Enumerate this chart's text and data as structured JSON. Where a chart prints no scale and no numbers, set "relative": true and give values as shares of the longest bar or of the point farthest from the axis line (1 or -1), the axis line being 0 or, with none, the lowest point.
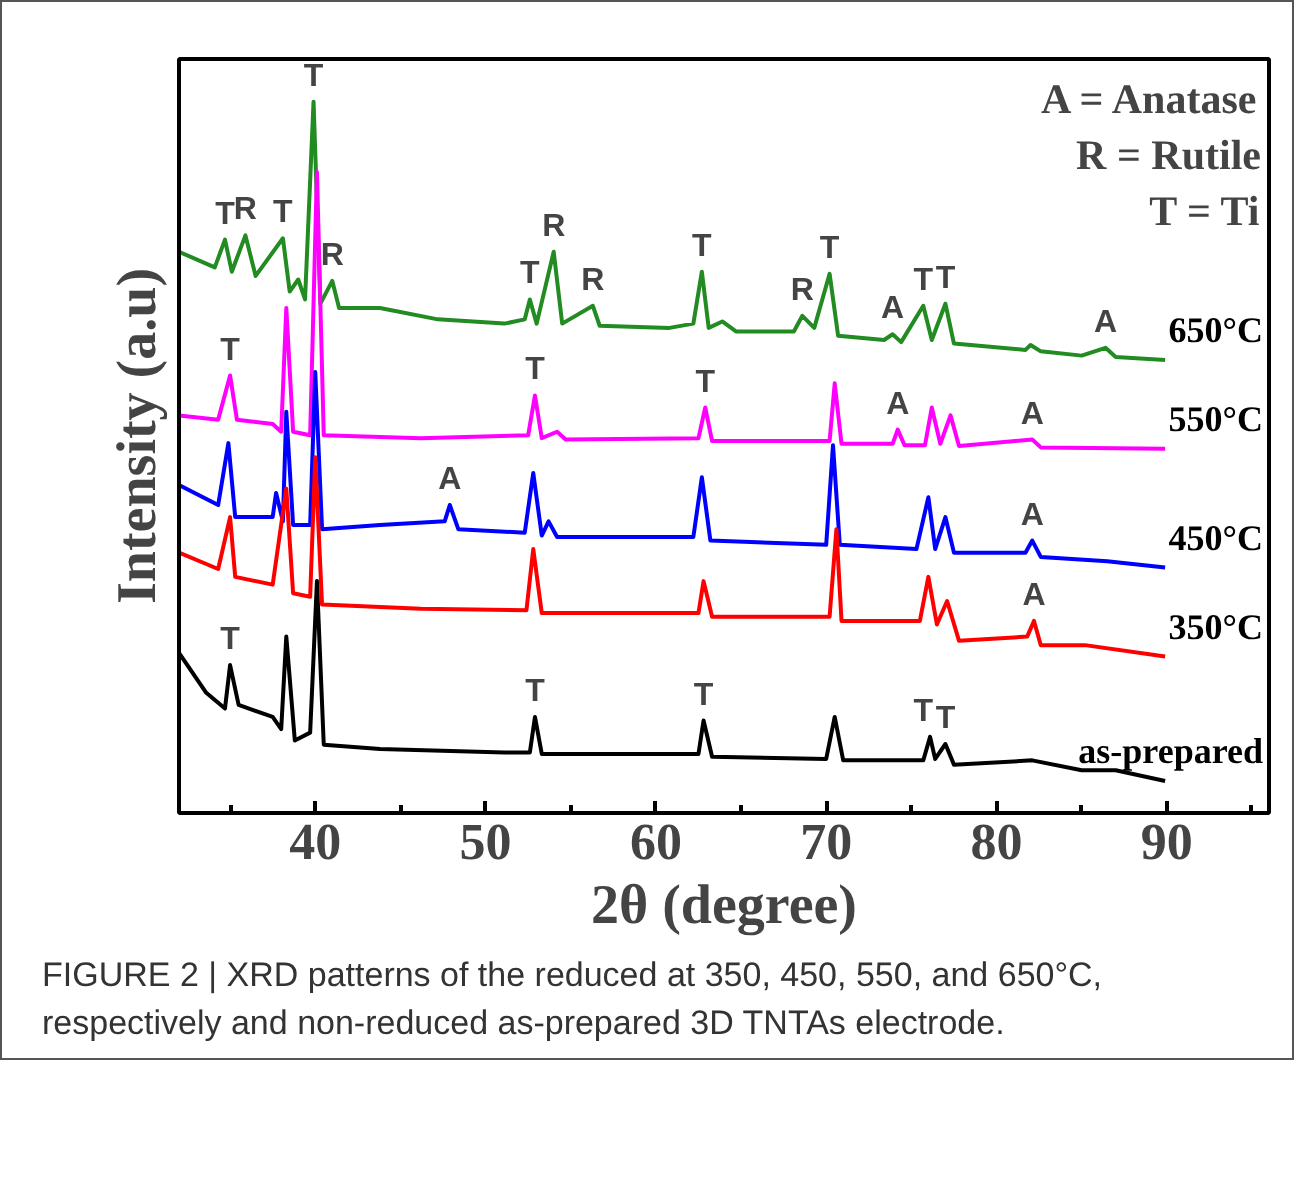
{
  "chart_data": {
    "type": "line",
    "relative": true,
    "xlabel": "2θ (degree)",
    "ylabel": "Intensity (a.u)",
    "xlim": [
      32,
      96
    ],
    "xticks": [
      {
        "value": 35,
        "label": null
      },
      40,
      {
        "value": 45,
        "label": null
      },
      50,
      {
        "value": 55,
        "label": null
      },
      60,
      {
        "value": 65,
        "label": null
      },
      70,
      {
        "value": 75,
        "label": null
      },
      80,
      {
        "value": 85,
        "label": null
      },
      90,
      {
        "value": 95,
        "label": null
      }
    ],
    "grid": false,
    "marker": "none",
    "line_style": "solid",
    "series": [
      {
        "name": "650°C",
        "color": "#228b22",
        "x": [
          32,
          34.1,
          34.7,
          35.1,
          35.9,
          36.5,
          38.1,
          38.5,
          39.0,
          39.4,
          39.9,
          40.3,
          41.0,
          41.4,
          43.8,
          47.2,
          51.1,
          52.3,
          52.6,
          53.0,
          54.0,
          54.5,
          56.3,
          56.7,
          60.8,
          62.2,
          62.7,
          63.1,
          63.9,
          64.7,
          68.1,
          68.6,
          69.3,
          70.2,
          70.7,
          73.4,
          73.9,
          74.4,
          75.7,
          76.2,
          77.0,
          77.5,
          81.7,
          82.0,
          82.6,
          85.0,
          86.4,
          87.0,
          89.9
        ],
        "values": [
          0.789,
          0.767,
          0.806,
          0.761,
          0.812,
          0.755,
          0.808,
          0.733,
          0.75,
          0.722,
          1.0,
          0.716,
          0.748,
          0.71,
          0.71,
          0.694,
          0.688,
          0.694,
          0.722,
          0.688,
          0.789,
          0.688,
          0.713,
          0.685,
          0.682,
          0.688,
          0.761,
          0.682,
          0.691,
          0.677,
          0.677,
          0.699,
          0.682,
          0.758,
          0.671,
          0.665,
          0.673,
          0.662,
          0.713,
          0.665,
          0.716,
          0.66,
          0.651,
          0.658,
          0.649,
          0.643,
          0.654,
          0.641,
          0.637
        ]
      },
      {
        "name": "550°C",
        "color": "#ff00ff",
        "x": [
          32,
          34.3,
          35.0,
          35.4,
          37.5,
          38.0,
          38.3,
          38.7,
          39.7,
          40.1,
          40.5,
          46.2,
          52.5,
          52.9,
          53.3,
          54.2,
          54.7,
          62.5,
          62.9,
          63.3,
          70.2,
          70.5,
          70.9,
          73.9,
          74.2,
          74.6,
          75.8,
          76.2,
          76.7,
          77.3,
          77.8,
          82.1,
          82.6,
          89.9
        ],
        "values": [
          0.559,
          0.553,
          0.615,
          0.553,
          0.547,
          0.536,
          0.71,
          0.536,
          0.531,
          0.901,
          0.531,
          0.527,
          0.531,
          0.587,
          0.527,
          0.536,
          0.525,
          0.527,
          0.57,
          0.523,
          0.523,
          0.604,
          0.519,
          0.519,
          0.539,
          0.517,
          0.517,
          0.57,
          0.519,
          0.559,
          0.516,
          0.525,
          0.514,
          0.512
        ]
      },
      {
        "name": "450°C",
        "color": "#0000ff",
        "x": [
          32,
          34.3,
          34.9,
          35.3,
          37.5,
          37.7,
          38.1,
          38.3,
          38.7,
          39.7,
          40.0,
          40.4,
          43.8,
          47.6,
          47.9,
          48.4,
          52.3,
          52.8,
          53.3,
          53.7,
          54.2,
          62.2,
          62.7,
          63.2,
          70.0,
          70.4,
          70.8,
          75.3,
          76.0,
          76.4,
          77.0,
          77.5,
          81.7,
          82.1,
          82.6,
          86.5,
          89.9
        ],
        "values": [
          0.461,
          0.433,
          0.52,
          0.416,
          0.416,
          0.45,
          0.41,
          0.564,
          0.405,
          0.405,
          0.62,
          0.399,
          0.405,
          0.41,
          0.433,
          0.399,
          0.394,
          0.478,
          0.39,
          0.41,
          0.388,
          0.388,
          0.472,
          0.383,
          0.377,
          0.517,
          0.377,
          0.371,
          0.444,
          0.371,
          0.416,
          0.366,
          0.366,
          0.383,
          0.36,
          0.354,
          0.345
        ]
      },
      {
        "name": "350°C",
        "color": "#ff0000",
        "x": [
          32,
          34.3,
          35.0,
          35.3,
          37.5,
          38.3,
          38.7,
          39.7,
          40.0,
          40.4,
          46.2,
          52.4,
          52.8,
          53.3,
          62.5,
          62.8,
          63.3,
          70.2,
          70.6,
          70.9,
          75.5,
          76.0,
          76.5,
          77.1,
          77.8,
          81.8,
          82.2,
          82.6,
          85.2,
          89.9
        ],
        "values": [
          0.366,
          0.343,
          0.416,
          0.332,
          0.321,
          0.456,
          0.309,
          0.304,
          0.5,
          0.293,
          0.287,
          0.285,
          0.371,
          0.281,
          0.281,
          0.326,
          0.276,
          0.276,
          0.399,
          0.27,
          0.27,
          0.332,
          0.265,
          0.298,
          0.242,
          0.248,
          0.27,
          0.236,
          0.236,
          0.22
        ]
      },
      {
        "name": "as-prepared",
        "color": "#000000",
        "x": [
          32,
          33.6,
          34.7,
          35.0,
          35.5,
          37.5,
          38.0,
          38.3,
          38.8,
          39.7,
          40.1,
          40.5,
          43.8,
          51.1,
          52.6,
          52.9,
          53.3,
          62.5,
          62.8,
          63.3,
          70.0,
          70.5,
          71.0,
          75.7,
          76.1,
          76.4,
          77.0,
          77.5,
          82.1,
          85.0,
          87.0,
          89.9
        ],
        "values": [
          0.225,
          0.169,
          0.147,
          0.208,
          0.152,
          0.135,
          0.118,
          0.248,
          0.102,
          0.113,
          0.326,
          0.096,
          0.09,
          0.085,
          0.085,
          0.135,
          0.083,
          0.083,
          0.13,
          0.079,
          0.076,
          0.135,
          0.074,
          0.074,
          0.107,
          0.076,
          0.097,
          0.068,
          0.074,
          0.06,
          0.06,
          0.045
        ]
      }
    ],
    "annotations": [
      {
        "text": "T",
        "x": 34.7,
        "y": 0.806
      },
      {
        "text": "R",
        "x": 35.9,
        "y": 0.812
      },
      {
        "text": "T",
        "x": 38.1,
        "y": 0.808
      },
      {
        "text": "T",
        "x": 39.9,
        "y": 1.0
      },
      {
        "text": "R",
        "x": 41.0,
        "y": 0.748
      },
      {
        "text": "T",
        "x": 52.6,
        "y": 0.722
      },
      {
        "text": "R",
        "x": 54.0,
        "y": 0.789
      },
      {
        "text": "R",
        "x": 56.3,
        "y": 0.713
      },
      {
        "text": "T",
        "x": 62.7,
        "y": 0.761
      },
      {
        "text": "R",
        "x": 68.6,
        "y": 0.699
      },
      {
        "text": "T",
        "x": 70.2,
        "y": 0.758
      },
      {
        "text": "A",
        "x": 73.9,
        "y": 0.673
      },
      {
        "text": "T",
        "x": 75.7,
        "y": 0.713
      },
      {
        "text": "T",
        "x": 77.0,
        "y": 0.716
      },
      {
        "text": "A",
        "x": 86.4,
        "y": 0.654
      },
      {
        "text": "T",
        "x": 35.0,
        "y": 0.615
      },
      {
        "text": "T",
        "x": 52.9,
        "y": 0.587
      },
      {
        "text": "T",
        "x": 62.9,
        "y": 0.57
      },
      {
        "text": "A",
        "x": 74.2,
        "y": 0.539
      },
      {
        "text": "A",
        "x": 82.1,
        "y": 0.525
      },
      {
        "text": "A",
        "x": 47.9,
        "y": 0.433
      },
      {
        "text": "A",
        "x": 82.1,
        "y": 0.383
      },
      {
        "text": "A",
        "x": 82.2,
        "y": 0.27
      },
      {
        "text": "T",
        "x": 35.0,
        "y": 0.208
      },
      {
        "text": "T",
        "x": 52.9,
        "y": 0.135
      },
      {
        "text": "T",
        "x": 62.8,
        "y": 0.13
      },
      {
        "text": "T",
        "x": 75.7,
        "y": 0.107
      },
      {
        "text": "T",
        "x": 77.0,
        "y": 0.097
      },
      "A = Anatase",
      "R = Rutile",
      "T = Ti",
      "FIGURE 2 | XRD patterns of the reduced at 350, 450, 550, and 650°C, respectively and non-reduced as-prepared 3D TNTAs electrode."
    ]
  }
}
